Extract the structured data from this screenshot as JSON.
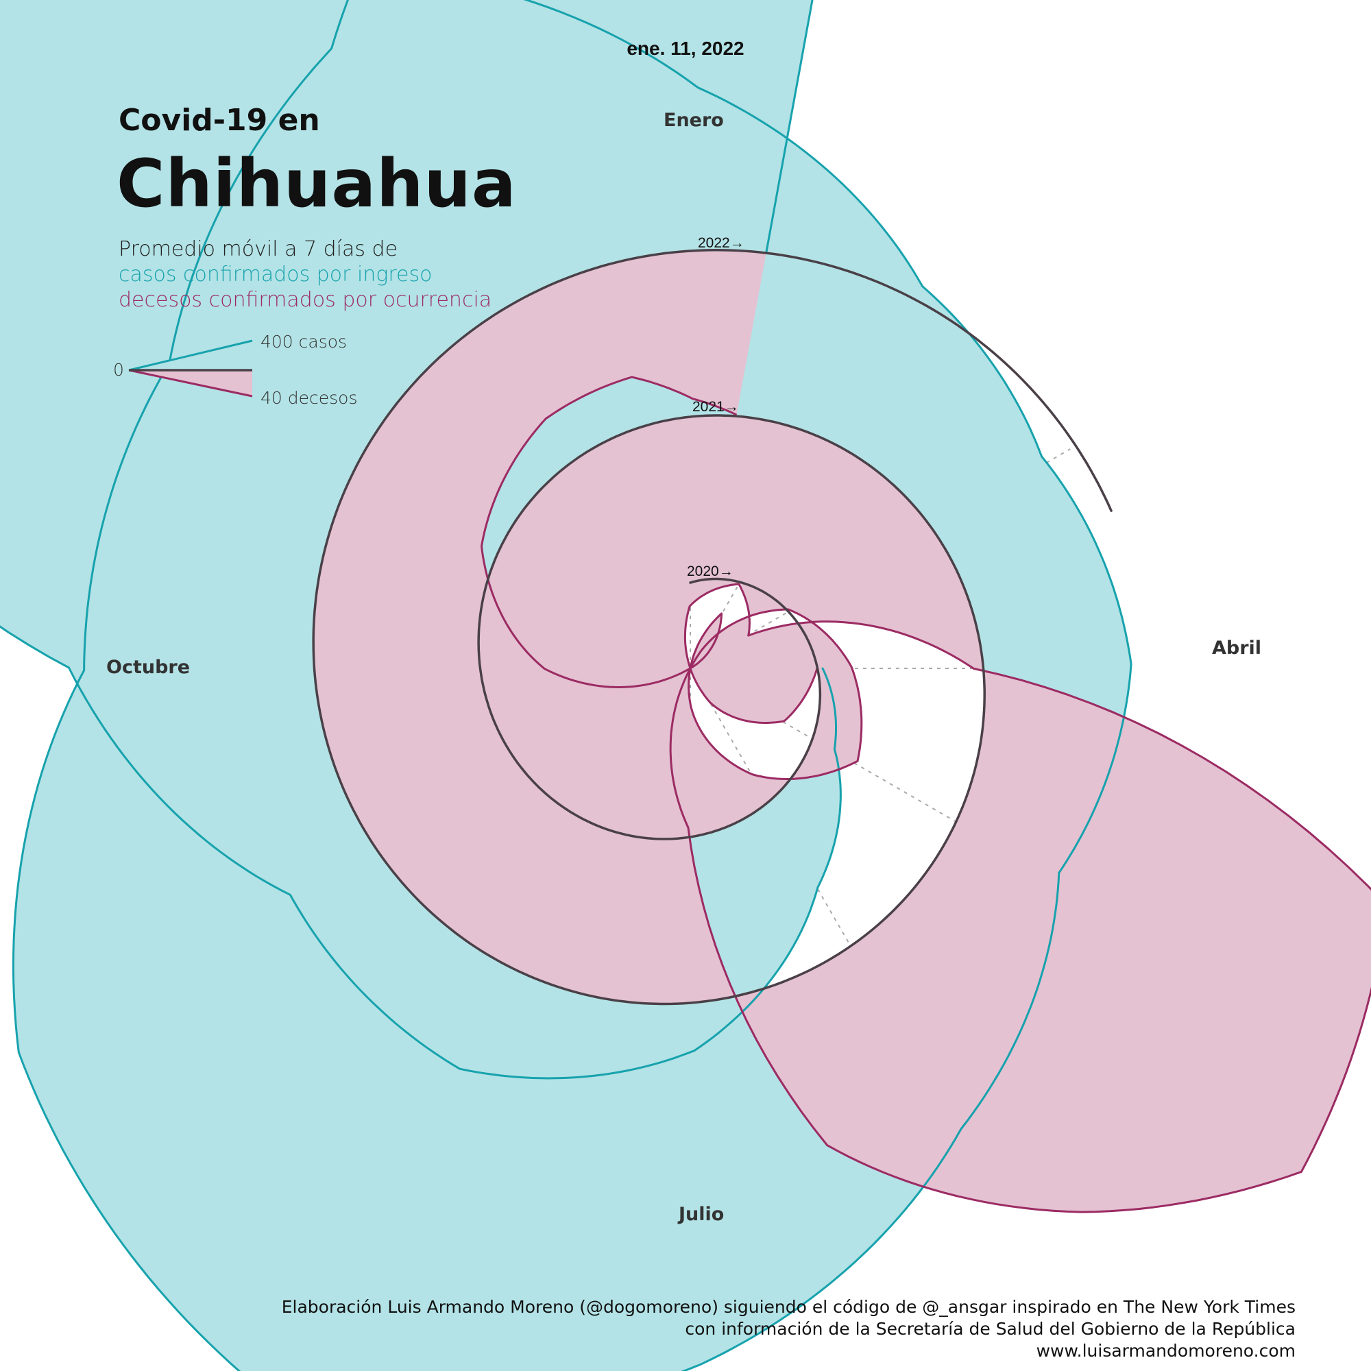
{
  "header": {
    "date_label": "ene. 11, 2022",
    "kicker": "Covid-19 en",
    "title": "Chihuahua",
    "subtitle_line1": "Promedio móvil a 7 días de",
    "subtitle_line2": "casos confirmados por ingreso",
    "subtitle_line3": "decesos confirmados por ocurrencia"
  },
  "legend": {
    "zero": "0",
    "cases": "400 casos",
    "deaths": "40 decesos"
  },
  "colors": {
    "cases_fill": "#b3e3e6",
    "cases_line": "#17a2ad",
    "deaths_fill": "#e4c2d2",
    "deaths_line": "#9c2b63",
    "spiral": "#4a4048",
    "grid": "#aaaaaa"
  },
  "chart_data": {
    "type": "area",
    "layout": "spiral",
    "month_labels": {
      "january": "Enero",
      "april": "Abril",
      "july": "Julio",
      "october": "Octubre"
    },
    "year_labels": [
      "2020→",
      "2021→",
      "2022→"
    ],
    "legend_scale": {
      "cases": 400,
      "deaths": 40
    },
    "series": [
      {
        "name": "casos confirmados por ingreso",
        "points": [
          [
            "2020-04-01",
            3
          ],
          [
            "2020-05-01",
            15
          ],
          [
            "2020-06-01",
            60
          ],
          [
            "2020-07-01",
            130
          ],
          [
            "2020-08-01",
            170
          ],
          [
            "2020-09-01",
            160
          ],
          [
            "2020-10-01",
            250
          ],
          [
            "2020-10-20",
            480
          ],
          [
            "2020-11-10",
            560
          ],
          [
            "2020-11-25",
            500
          ],
          [
            "2020-12-15",
            280
          ],
          [
            "2021-01-01",
            200
          ],
          [
            "2021-02-01",
            110
          ],
          [
            "2021-03-01",
            80
          ],
          [
            "2021-04-01",
            90
          ],
          [
            "2021-05-01",
            70
          ],
          [
            "2021-06-01",
            130
          ],
          [
            "2021-07-01",
            220
          ],
          [
            "2021-08-01",
            300
          ],
          [
            "2021-09-01",
            250
          ],
          [
            "2021-10-01",
            140
          ],
          [
            "2021-11-01",
            130
          ],
          [
            "2021-12-01",
            190
          ],
          [
            "2021-12-20",
            320
          ],
          [
            "2022-01-01",
            650
          ],
          [
            "2022-01-11",
            950
          ]
        ]
      },
      {
        "name": "decesos confirmados por ocurrencia",
        "points": [
          [
            "2020-04-01",
            0
          ],
          [
            "2020-05-01",
            2
          ],
          [
            "2020-06-01",
            7
          ],
          [
            "2020-07-01",
            14
          ],
          [
            "2020-08-01",
            17
          ],
          [
            "2020-09-01",
            16
          ],
          [
            "2020-10-01",
            30
          ],
          [
            "2020-10-20",
            58
          ],
          [
            "2020-11-10",
            62
          ],
          [
            "2020-11-25",
            55
          ],
          [
            "2020-12-15",
            45
          ],
          [
            "2021-01-01",
            25
          ],
          [
            "2021-02-01",
            15
          ],
          [
            "2021-03-01",
            10
          ],
          [
            "2021-04-01",
            8
          ],
          [
            "2021-05-01",
            7
          ],
          [
            "2021-06-01",
            12
          ],
          [
            "2021-07-01",
            18
          ],
          [
            "2021-08-01",
            25
          ],
          [
            "2021-09-01",
            22
          ],
          [
            "2021-10-01",
            14
          ],
          [
            "2021-11-01",
            9
          ],
          [
            "2021-12-01",
            7
          ],
          [
            "2021-12-20",
            7
          ],
          [
            "2022-01-01",
            9
          ],
          [
            "2022-01-11",
            10
          ]
        ]
      }
    ]
  },
  "credits": {
    "line1": "Elaboración Luis Armando Moreno (@dogomoreno) siguiendo el código de @_ansgar inspirado en The New York Times",
    "line2": "con información de la Secretaría de Salud del Gobierno de la República",
    "line3": "www.luisarmandomoreno.com"
  }
}
